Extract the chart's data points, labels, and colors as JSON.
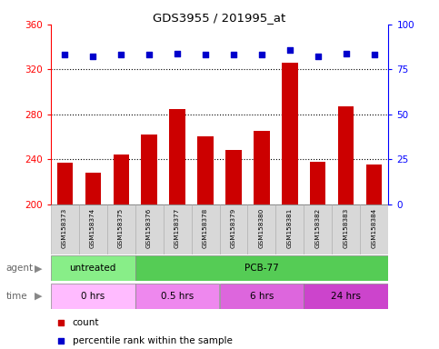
{
  "title": "GDS3955 / 201995_at",
  "samples": [
    "GSM158373",
    "GSM158374",
    "GSM158375",
    "GSM158376",
    "GSM158377",
    "GSM158378",
    "GSM158379",
    "GSM158380",
    "GSM158381",
    "GSM158382",
    "GSM158383",
    "GSM158384"
  ],
  "counts": [
    237,
    228,
    244,
    262,
    285,
    260,
    248,
    265,
    326,
    238,
    287,
    235
  ],
  "percentile_ranks": [
    83,
    82,
    83,
    83,
    84,
    83,
    83,
    83,
    86,
    82,
    84,
    83
  ],
  "ylim_left": [
    200,
    360
  ],
  "ylim_right": [
    0,
    100
  ],
  "yticks_left": [
    200,
    240,
    280,
    320,
    360
  ],
  "yticks_right": [
    0,
    25,
    50,
    75,
    100
  ],
  "bar_color": "#cc0000",
  "dot_color": "#0000cc",
  "sample_bg_color": "#d8d8d8",
  "agent_row": [
    {
      "label": "untreated",
      "start": 0,
      "end": 3,
      "color": "#88ee88"
    },
    {
      "label": "PCB-77",
      "start": 3,
      "end": 12,
      "color": "#55cc55"
    }
  ],
  "time_row": [
    {
      "label": "0 hrs",
      "start": 0,
      "end": 3,
      "color": "#ffbbff"
    },
    {
      "label": "0.5 hrs",
      "start": 3,
      "end": 6,
      "color": "#ee88ee"
    },
    {
      "label": "6 hrs",
      "start": 6,
      "end": 9,
      "color": "#dd66dd"
    },
    {
      "label": "24 hrs",
      "start": 9,
      "end": 12,
      "color": "#cc44cc"
    }
  ],
  "legend_count_color": "#cc0000",
  "legend_pct_color": "#0000cc"
}
